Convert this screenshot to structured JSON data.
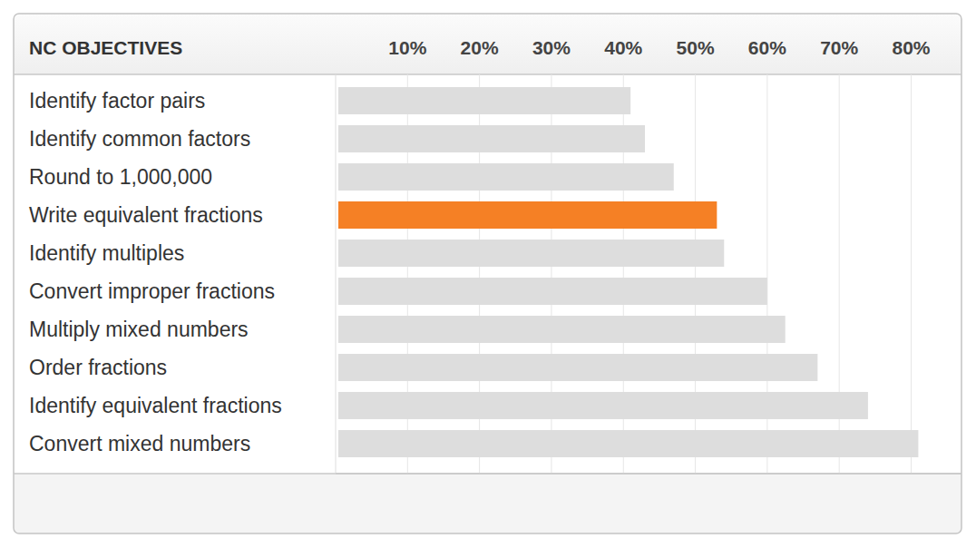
{
  "chart_data": {
    "type": "bar",
    "orientation": "horizontal",
    "title": "NC OBJECTIVES",
    "categories": [
      "Identify factor pairs",
      "Identify common factors",
      "Round to 1,000,000",
      "Write equivalent fractions",
      "Identify multiples",
      "Convert improper fractions",
      "Multiply mixed numbers",
      "Order fractions",
      "Identify equivalent fractions",
      "Convert mixed numbers"
    ],
    "values": [
      41,
      43,
      47,
      53,
      54,
      60,
      62.5,
      67,
      74,
      81
    ],
    "colors": [
      "#dddddd",
      "#dddddd",
      "#dddddd",
      "#f58025",
      "#dddddd",
      "#dddddd",
      "#dddddd",
      "#dddddd",
      "#dddddd",
      "#dddddd"
    ],
    "xlim": [
      0,
      87
    ],
    "xticks": [
      {
        "value": 10,
        "label": "10%"
      },
      {
        "value": 20,
        "label": "20%"
      },
      {
        "value": 30,
        "label": "30%"
      },
      {
        "value": 40,
        "label": "40%"
      },
      {
        "value": 50,
        "label": "50%"
      },
      {
        "value": 60,
        "label": "60%"
      },
      {
        "value": 70,
        "label": "70%"
      },
      {
        "value": 80,
        "label": "80%"
      }
    ],
    "grid": true
  }
}
